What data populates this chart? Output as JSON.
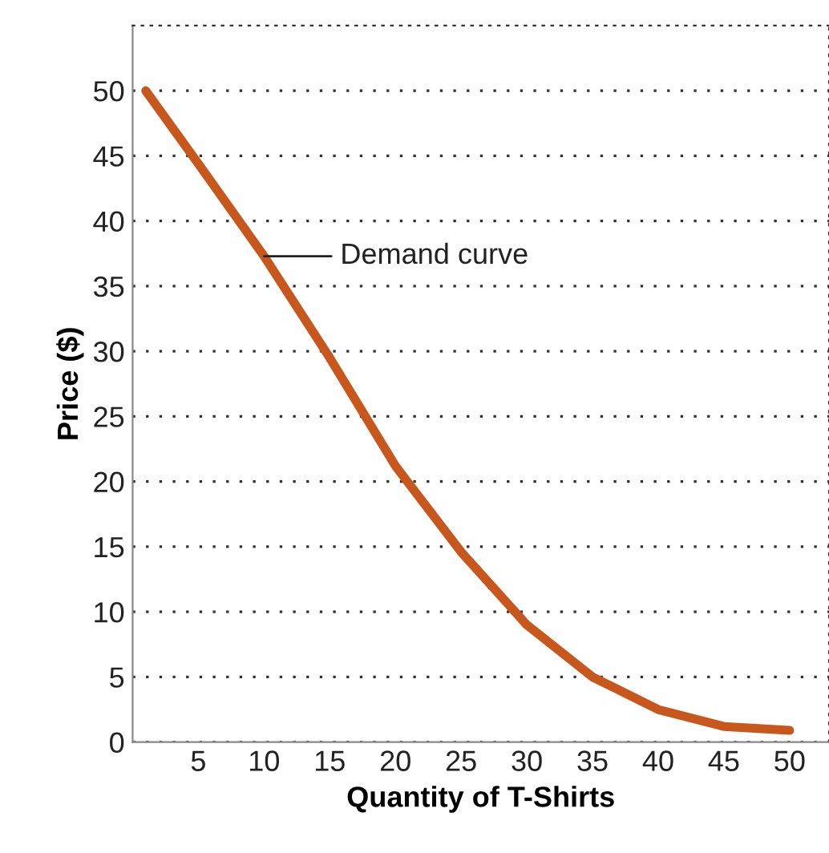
{
  "chart_data": {
    "type": "line",
    "xlabel": "Quantity of T-Shirts",
    "ylabel": "Price ($)",
    "x": [
      1,
      5,
      10,
      15,
      20,
      25,
      30,
      35,
      40,
      45,
      50
    ],
    "series": [
      {
        "color": "#c8571e",
        "values": [
          50,
          44.4,
          37.3,
          29.5,
          21.2,
          14.6,
          9,
          5,
          2.5,
          1.2,
          0.9
        ]
      }
    ],
    "xlim": [
      0,
      53
    ],
    "ylim": [
      0,
      55
    ],
    "xticks": [
      5,
      10,
      15,
      20,
      25,
      30,
      35,
      40,
      45,
      50
    ],
    "yticks": [
      0,
      5,
      10,
      15,
      20,
      25,
      30,
      35,
      40,
      45,
      50
    ],
    "grid": "y",
    "legend": false,
    "marker": "none",
    "line_style": "solid",
    "annotations": [
      {
        "text": "Demand curve",
        "x": 10,
        "y": 37.3
      }
    ]
  }
}
